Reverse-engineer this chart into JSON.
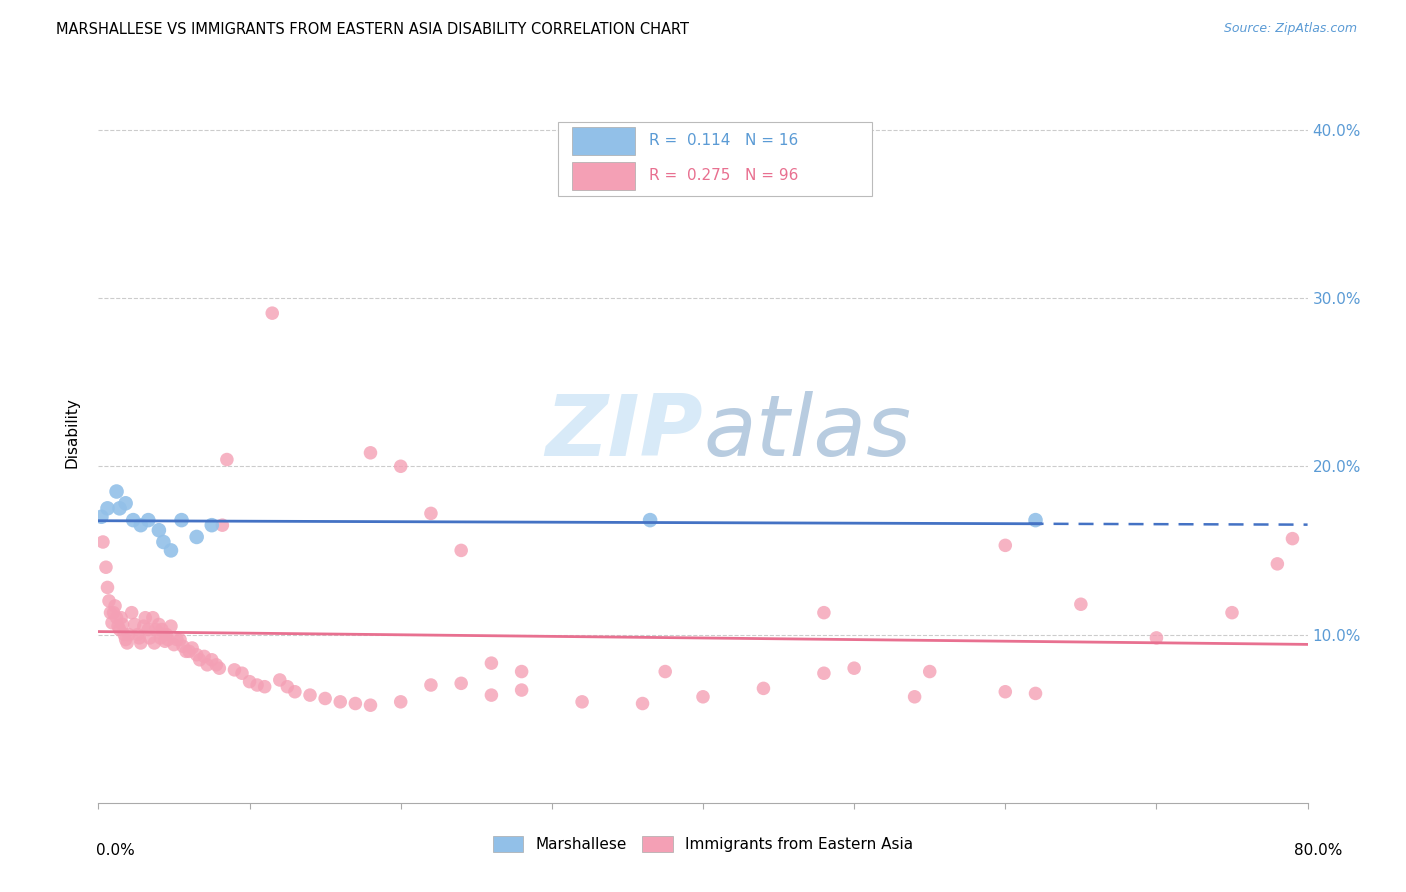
{
  "title": "MARSHALLESE VS IMMIGRANTS FROM EASTERN ASIA DISABILITY CORRELATION CHART",
  "source": "Source: ZipAtlas.com",
  "ylabel": "Disability",
  "xlim": [
    0.0,
    0.8
  ],
  "ylim": [
    0.0,
    0.44
  ],
  "blue_color": "#92C0E8",
  "pink_color": "#F4A0B5",
  "blue_line_color": "#4472C4",
  "pink_line_color": "#E87090",
  "blue_text_color": "#5B9BD5",
  "pink_text_color": "#E87090",
  "watermark_zip": "ZIP",
  "watermark_atlas": "atlas",
  "marshallese_x": [
    0.002,
    0.006,
    0.012,
    0.014,
    0.018,
    0.023,
    0.028,
    0.033,
    0.04,
    0.043,
    0.048,
    0.055,
    0.065,
    0.075,
    0.365,
    0.62
  ],
  "marshallese_y": [
    0.17,
    0.175,
    0.185,
    0.175,
    0.178,
    0.168,
    0.165,
    0.168,
    0.162,
    0.155,
    0.15,
    0.168,
    0.158,
    0.165,
    0.168,
    0.168
  ],
  "eastern_asia_x": [
    0.003,
    0.005,
    0.006,
    0.007,
    0.008,
    0.009,
    0.01,
    0.011,
    0.012,
    0.013,
    0.014,
    0.015,
    0.016,
    0.017,
    0.018,
    0.019,
    0.02,
    0.022,
    0.024,
    0.026,
    0.027,
    0.028,
    0.03,
    0.031,
    0.033,
    0.034,
    0.036,
    0.037,
    0.038,
    0.04,
    0.041,
    0.042,
    0.043,
    0.044,
    0.045,
    0.046,
    0.048,
    0.05,
    0.052,
    0.054,
    0.056,
    0.058,
    0.06,
    0.062,
    0.065,
    0.067,
    0.07,
    0.072,
    0.075,
    0.078,
    0.08,
    0.082,
    0.085,
    0.09,
    0.095,
    0.1,
    0.105,
    0.11,
    0.115,
    0.12,
    0.125,
    0.13,
    0.14,
    0.15,
    0.16,
    0.17,
    0.18,
    0.2,
    0.22,
    0.24,
    0.26,
    0.28,
    0.32,
    0.36,
    0.4,
    0.44,
    0.48,
    0.54,
    0.6,
    0.65,
    0.7,
    0.75,
    0.78,
    0.79,
    0.375,
    0.48,
    0.5,
    0.55,
    0.6,
    0.62,
    0.18,
    0.2,
    0.22,
    0.24,
    0.26,
    0.28
  ],
  "eastern_asia_y": [
    0.155,
    0.14,
    0.128,
    0.12,
    0.113,
    0.107,
    0.113,
    0.117,
    0.11,
    0.105,
    0.103,
    0.11,
    0.106,
    0.1,
    0.097,
    0.095,
    0.1,
    0.113,
    0.106,
    0.1,
    0.098,
    0.095,
    0.105,
    0.11,
    0.103,
    0.098,
    0.11,
    0.095,
    0.103,
    0.106,
    0.098,
    0.103,
    0.1,
    0.096,
    0.1,
    0.097,
    0.105,
    0.094,
    0.097,
    0.097,
    0.093,
    0.09,
    0.09,
    0.092,
    0.088,
    0.085,
    0.087,
    0.082,
    0.085,
    0.082,
    0.08,
    0.165,
    0.204,
    0.079,
    0.077,
    0.072,
    0.07,
    0.069,
    0.291,
    0.073,
    0.069,
    0.066,
    0.064,
    0.062,
    0.06,
    0.059,
    0.058,
    0.06,
    0.07,
    0.071,
    0.064,
    0.067,
    0.06,
    0.059,
    0.063,
    0.068,
    0.113,
    0.063,
    0.153,
    0.118,
    0.098,
    0.113,
    0.142,
    0.157,
    0.078,
    0.077,
    0.08,
    0.078,
    0.066,
    0.065,
    0.208,
    0.2,
    0.172,
    0.15,
    0.083,
    0.078
  ]
}
